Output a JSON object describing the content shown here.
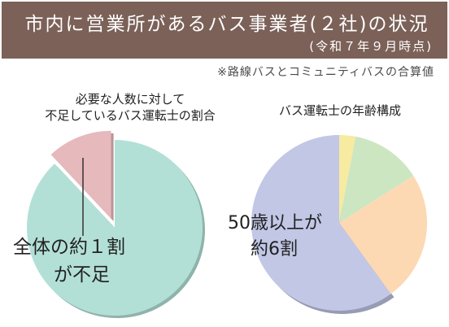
{
  "header": {
    "title": "市内に営業所があるバス事業者(２社)の状況",
    "subtitle": "(令和７年９月時点)"
  },
  "note": "※路線バスとコミュニティバスの合算値",
  "colors": {
    "banner": "#7b6158",
    "left_insufficient": "#e6b9bc",
    "left_rest": "#b3e0d6",
    "right_over50": "#c2c7e6",
    "right_orange": "#fcd9b3",
    "right_green": "#cce6c2",
    "right_yellow": "#f6eba0"
  },
  "chart_data": [
    {
      "type": "pie",
      "title": "必要な人数に対して\n不足しているバス運転士の割合",
      "title_lines": [
        "必要な人数に対して",
        "不足しているバス運転士の割合"
      ],
      "annotation_lines": [
        "全体の約１割",
        "が不足"
      ],
      "slices": [
        {
          "value": 12
        },
        {
          "value": 88
        }
      ]
    },
    {
      "type": "pie",
      "title": "バス運転士の年齢構成",
      "annotation_lines": [
        "50歳以上が",
        "約6割"
      ],
      "slices": [
        {
          "value": 60
        },
        {
          "value": 24
        },
        {
          "value": 13
        },
        {
          "value": 3
        }
      ]
    }
  ]
}
